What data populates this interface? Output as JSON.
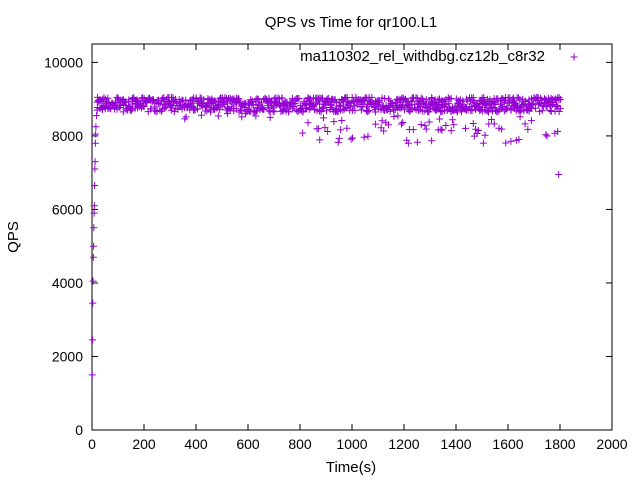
{
  "chart_data": {
    "type": "scatter",
    "title": "QPS vs Time for qr100.L1",
    "xlabel": "Time(s)",
    "ylabel": "QPS",
    "xlim": [
      0,
      2000
    ],
    "ylim": [
      0,
      10500
    ],
    "xticks": [
      0,
      200,
      400,
      600,
      800,
      1000,
      1200,
      1400,
      1600,
      1800,
      2000
    ],
    "yticks": [
      0,
      2000,
      4000,
      6000,
      8000,
      10000
    ],
    "xtick_labels": [
      "0",
      "200",
      "400",
      "600",
      "800",
      "1000",
      "1200",
      "1400",
      "1600",
      "1800",
      "2000"
    ],
    "ytick_labels": [
      "0",
      "2000",
      "4000",
      "6000",
      "8000",
      "10000"
    ],
    "grid": false,
    "legend_position": "top-right",
    "marker": "plus",
    "series": [
      {
        "name": "ma110302_rel_withdbg.cz12b_c8r32",
        "color": "#9400d3",
        "sampling": {
          "x_range": [
            0,
            1800
          ],
          "step_s": 5,
          "typical_band": [
            8650,
            9050
          ],
          "dip_band_after_800s": [
            7800,
            8550
          ],
          "last_point": {
            "x": 1795,
            "y": 6950
          }
        },
        "startup_points": [
          {
            "x": 1,
            "y": 1500
          },
          {
            "x": 2,
            "y": 2450
          },
          {
            "x": 3,
            "y": 3450
          },
          {
            "x": 4,
            "y": 4050
          },
          {
            "x": 5,
            "y": 4700
          },
          {
            "x": 6,
            "y": 5000
          },
          {
            "x": 7,
            "y": 5500
          },
          {
            "x": 8,
            "y": 5900
          },
          {
            "x": 9,
            "y": 6100
          },
          {
            "x": 10,
            "y": 6650
          },
          {
            "x": 11,
            "y": 7100
          },
          {
            "x": 12,
            "y": 7300
          },
          {
            "x": 13,
            "y": 7800
          },
          {
            "x": 14,
            "y": 8050
          },
          {
            "x": 15,
            "y": 8250
          },
          {
            "x": 17,
            "y": 8550
          },
          {
            "x": 20,
            "y": 8700
          }
        ]
      }
    ]
  }
}
